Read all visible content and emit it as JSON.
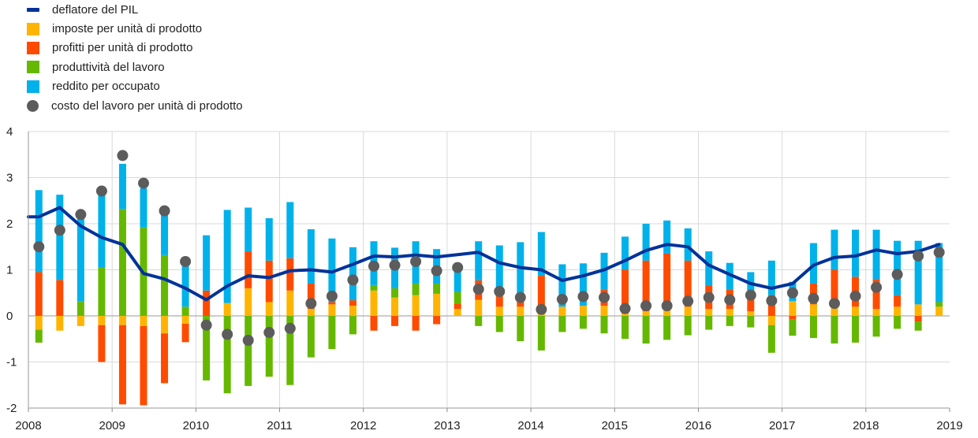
{
  "chart_data": {
    "type": "bar",
    "stacked": true,
    "title": "",
    "xlabel": "",
    "ylabel": "",
    "ylim": [
      -2,
      4
    ],
    "yticks": [
      4,
      3,
      2,
      1,
      0,
      -1,
      -2
    ],
    "xticks": [
      "2008",
      "2009",
      "2010",
      "2011",
      "2012",
      "2013",
      "2014",
      "2015",
      "2016",
      "2017",
      "2018",
      "2019"
    ],
    "grid": true,
    "legend_position": "top-left",
    "x": [
      "2008 Q1",
      "2008 Q2",
      "2008 Q3",
      "2008 Q4",
      "2009 Q1",
      "2009 Q2",
      "2009 Q3",
      "2009 Q4",
      "2010 Q1",
      "2010 Q2",
      "2010 Q3",
      "2010 Q4",
      "2011 Q1",
      "2011 Q2",
      "2011 Q3",
      "2011 Q4",
      "2012 Q1",
      "2012 Q2",
      "2012 Q3",
      "2012 Q4",
      "2013 Q1",
      "2013 Q2",
      "2013 Q3",
      "2013 Q4",
      "2014 Q1",
      "2014 Q2",
      "2014 Q3",
      "2014 Q4",
      "2015 Q1",
      "2015 Q2",
      "2015 Q3",
      "2015 Q4",
      "2016 Q1",
      "2016 Q2",
      "2016 Q3",
      "2016 Q4",
      "2017 Q1",
      "2017 Q2",
      "2017 Q3",
      "2017 Q4",
      "2018 Q1",
      "2018 Q2",
      "2018 Q3",
      "2018 Q4"
    ],
    "series": [
      {
        "name": "imposte per unità di prodotto",
        "kind": "bar",
        "color": "#ffb400",
        "values": [
          -0.3,
          -0.32,
          -0.22,
          -0.2,
          -0.2,
          -0.22,
          -0.38,
          -0.17,
          0.0,
          0.28,
          0.6,
          0.3,
          0.55,
          0.15,
          0.25,
          0.22,
          0.55,
          0.4,
          0.45,
          0.48,
          0.15,
          0.35,
          0.2,
          0.2,
          0.05,
          0.2,
          0.22,
          0.22,
          0.05,
          0.1,
          0.15,
          0.2,
          0.15,
          0.15,
          0.1,
          -0.2,
          0.32,
          0.25,
          0.2,
          0.2,
          0.15,
          0.2,
          0.25,
          0.2
        ]
      },
      {
        "name": "profitti per unità di prodotto",
        "kind": "bar",
        "color": "#ff4b00",
        "values": [
          0.95,
          0.78,
          0.0,
          -0.8,
          -1.72,
          -1.72,
          -1.08,
          -0.4,
          0.55,
          0.0,
          0.8,
          0.9,
          0.7,
          0.55,
          0.05,
          0.12,
          -0.32,
          -0.22,
          -0.32,
          -0.18,
          0.12,
          0.42,
          0.25,
          0.3,
          0.82,
          0.0,
          0.0,
          0.35,
          0.95,
          1.1,
          1.2,
          1.0,
          0.5,
          0.42,
          0.3,
          0.45,
          -0.08,
          0.45,
          0.8,
          0.65,
          0.65,
          0.25,
          -0.12,
          0.0
        ]
      },
      {
        "name": "produttività del lavoro",
        "kind": "bar",
        "color": "#65b800",
        "values": [
          -0.28,
          0.0,
          0.32,
          1.05,
          2.32,
          1.92,
          1.32,
          0.2,
          -1.4,
          -1.68,
          -1.52,
          -1.32,
          -1.5,
          -0.9,
          -0.72,
          -0.4,
          0.12,
          0.2,
          0.25,
          0.22,
          0.25,
          -0.22,
          -0.35,
          -0.55,
          -0.75,
          -0.35,
          -0.28,
          -0.38,
          -0.5,
          -0.6,
          -0.52,
          -0.42,
          -0.3,
          -0.22,
          -0.25,
          -0.6,
          -0.35,
          -0.48,
          -0.6,
          -0.58,
          -0.45,
          -0.28,
          -0.2,
          0.1
        ]
      },
      {
        "name": "reddito per occupato",
        "kind": "bar",
        "color": "#00b1ea",
        "values": [
          1.78,
          1.85,
          1.92,
          1.6,
          0.98,
          0.85,
          0.88,
          1.05,
          1.2,
          2.02,
          0.95,
          0.92,
          1.22,
          1.18,
          1.38,
          1.15,
          0.95,
          0.88,
          0.92,
          0.75,
          0.5,
          0.85,
          1.08,
          1.1,
          0.95,
          0.92,
          0.92,
          0.8,
          0.72,
          0.8,
          0.72,
          0.7,
          0.75,
          0.58,
          0.55,
          0.75,
          0.42,
          0.88,
          0.87,
          1.02,
          1.07,
          1.18,
          1.38,
          1.28
        ]
      },
      {
        "name": "costo del lavoro per unità di prodotto",
        "kind": "dot",
        "color": "#5c5c5c",
        "values": [
          1.5,
          1.86,
          2.2,
          2.71,
          3.48,
          2.88,
          2.28,
          1.18,
          -0.2,
          -0.4,
          -0.53,
          -0.36,
          -0.27,
          0.27,
          0.43,
          0.78,
          1.08,
          1.1,
          1.18,
          0.98,
          1.05,
          0.58,
          0.53,
          0.4,
          0.14,
          0.36,
          0.42,
          0.4,
          0.16,
          0.22,
          0.22,
          0.32,
          0.4,
          0.35,
          0.45,
          0.33,
          0.5,
          0.38,
          0.27,
          0.43,
          0.62,
          0.9,
          1.3,
          1.38
        ]
      },
      {
        "name": "deflatore del PIL",
        "kind": "line",
        "color": "#003299",
        "values": [
          2.15,
          2.35,
          1.95,
          1.7,
          1.55,
          0.92,
          0.8,
          0.6,
          0.35,
          0.65,
          0.87,
          0.83,
          0.98,
          1.0,
          0.95,
          1.12,
          1.3,
          1.28,
          1.32,
          1.28,
          1.33,
          1.38,
          1.15,
          1.05,
          1.0,
          0.77,
          0.87,
          1.0,
          1.2,
          1.42,
          1.55,
          1.5,
          1.1,
          0.9,
          0.7,
          0.6,
          0.7,
          1.1,
          1.27,
          1.3,
          1.43,
          1.35,
          1.4,
          1.55
        ]
      }
    ]
  },
  "legend": [
    {
      "label": "deflatore del PIL",
      "symbol": "line",
      "color": "#003299"
    },
    {
      "label": "imposte per unità di prodotto",
      "symbol": "square",
      "color": "#ffb400"
    },
    {
      "label": "profitti per unità di prodotto",
      "symbol": "square",
      "color": "#ff4b00"
    },
    {
      "label": "produttività del lavoro",
      "symbol": "square",
      "color": "#65b800"
    },
    {
      "label": "reddito per occupato",
      "symbol": "square",
      "color": "#00b1ea"
    },
    {
      "label": "costo del lavoro per unità di prodotto",
      "symbol": "dot",
      "color": "#5c5c5c"
    }
  ]
}
